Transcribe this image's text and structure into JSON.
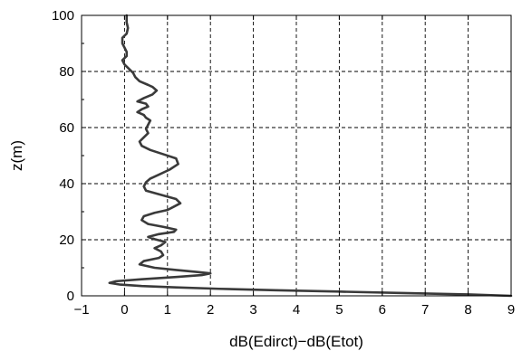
{
  "chart_data": {
    "type": "line",
    "title": "",
    "xlabel": "dB(Edirct)−dB(Etot)",
    "ylabel": "z(m)",
    "xlim": [
      -1,
      9
    ],
    "ylim": [
      0,
      100
    ],
    "xticks": [
      -1,
      0,
      1,
      2,
      3,
      4,
      5,
      6,
      7,
      8,
      9
    ],
    "xtick_labels": [
      "−1",
      "0",
      "1",
      "2",
      "3",
      "4",
      "5",
      "6",
      "7",
      "8",
      "9"
    ],
    "yticks": [
      0,
      20,
      40,
      60,
      80,
      100
    ],
    "ytick_labels": [
      "0",
      "20",
      "40",
      "60",
      "80",
      "100"
    ],
    "grid": true,
    "legend": "none",
    "series": [
      {
        "color": "#3a3a3a",
        "points": [
          [
            9.0,
            0.0
          ],
          [
            8.0,
            0.5
          ],
          [
            6.5,
            1.0
          ],
          [
            5.0,
            1.5
          ],
          [
            3.5,
            2.0
          ],
          [
            2.2,
            2.5
          ],
          [
            1.2,
            3.0
          ],
          [
            0.4,
            3.5
          ],
          [
            -0.1,
            4.0
          ],
          [
            -0.35,
            4.6
          ],
          [
            -0.2,
            5.2
          ],
          [
            0.4,
            5.9
          ],
          [
            1.2,
            6.7
          ],
          [
            1.8,
            7.4
          ],
          [
            2.0,
            8.0
          ],
          [
            1.7,
            8.5
          ],
          [
            1.2,
            9.2
          ],
          [
            0.7,
            10.0
          ],
          [
            0.35,
            11.2
          ],
          [
            0.45,
            12.4
          ],
          [
            0.8,
            13.5
          ],
          [
            0.9,
            14.5
          ],
          [
            0.85,
            15.8
          ],
          [
            0.7,
            17.0
          ],
          [
            0.85,
            18.0
          ],
          [
            0.95,
            19.2
          ],
          [
            0.7,
            20.2
          ],
          [
            0.55,
            21.0
          ],
          [
            0.8,
            22.0
          ],
          [
            1.15,
            22.8
          ],
          [
            1.2,
            23.6
          ],
          [
            0.9,
            24.6
          ],
          [
            0.55,
            25.6
          ],
          [
            0.4,
            27.0
          ],
          [
            0.45,
            28.4
          ],
          [
            0.7,
            29.6
          ],
          [
            1.0,
            30.6
          ],
          [
            1.15,
            31.8
          ],
          [
            1.3,
            33.0
          ],
          [
            1.2,
            34.5
          ],
          [
            0.85,
            36.0
          ],
          [
            0.5,
            37.5
          ],
          [
            0.45,
            39.0
          ],
          [
            0.5,
            40.5
          ],
          [
            0.6,
            41.8
          ],
          [
            0.8,
            43.2
          ],
          [
            1.05,
            45.0
          ],
          [
            1.25,
            47.0
          ],
          [
            1.2,
            49.0
          ],
          [
            0.9,
            50.5
          ],
          [
            0.6,
            52.0
          ],
          [
            0.4,
            53.5
          ],
          [
            0.35,
            55.0
          ],
          [
            0.45,
            56.5
          ],
          [
            0.55,
            58.0
          ],
          [
            0.5,
            59.5
          ],
          [
            0.55,
            61.0
          ],
          [
            0.6,
            62.5
          ],
          [
            0.5,
            63.5
          ],
          [
            0.45,
            64.5
          ],
          [
            0.3,
            65.5
          ],
          [
            0.4,
            66.5
          ],
          [
            0.55,
            67.5
          ],
          [
            0.5,
            68.5
          ],
          [
            0.3,
            69.3
          ],
          [
            0.45,
            70.5
          ],
          [
            0.65,
            71.8
          ],
          [
            0.75,
            73.2
          ],
          [
            0.65,
            74.5
          ],
          [
            0.55,
            75.2
          ],
          [
            0.35,
            76.5
          ],
          [
            0.25,
            78.0
          ],
          [
            0.2,
            79.5
          ],
          [
            0.1,
            81.0
          ],
          [
            0.0,
            82.5
          ],
          [
            -0.05,
            84.0
          ],
          [
            0.05,
            85.5
          ],
          [
            0.05,
            87.0
          ],
          [
            0.0,
            88.5
          ],
          [
            -0.05,
            90.0
          ],
          [
            -0.05,
            92.0
          ],
          [
            0.05,
            93.5
          ],
          [
            0.08,
            95.5
          ],
          [
            0.05,
            97.5
          ],
          [
            0.05,
            100.0
          ]
        ]
      }
    ]
  }
}
